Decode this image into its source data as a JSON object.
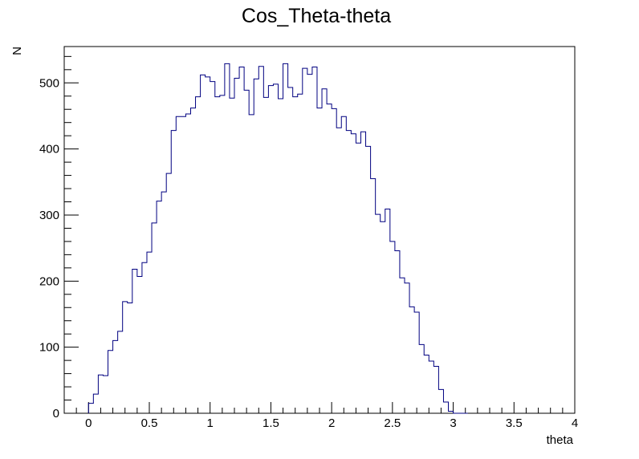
{
  "chart_data": {
    "type": "bar",
    "style": "step-histogram",
    "title": "Cos_Theta-theta",
    "xlabel": "theta",
    "ylabel": "N",
    "xlim": [
      -0.2,
      4
    ],
    "ylim": [
      0,
      555
    ],
    "x_major_ticks": [
      0,
      0.5,
      1,
      1.5,
      2,
      2.5,
      3,
      3.5,
      4
    ],
    "x_tick_labels": [
      "0",
      "0.5",
      "1",
      "1.5",
      "2",
      "2.5",
      "3",
      "3.5",
      "4"
    ],
    "y_major_ticks": [
      0,
      100,
      200,
      300,
      400,
      500
    ],
    "y_tick_labels": [
      "0",
      "100",
      "200",
      "300",
      "400",
      "500"
    ],
    "bin_width": 0.04,
    "line_color": "#000080",
    "grid": false,
    "legend": false,
    "series": [
      {
        "x_low": [
          0.0,
          0.04,
          0.08,
          0.12,
          0.16,
          0.2,
          0.24,
          0.28,
          0.32,
          0.36,
          0.4,
          0.44,
          0.48,
          0.52,
          0.56,
          0.6,
          0.64,
          0.68,
          0.72,
          0.76,
          0.8,
          0.84,
          0.88,
          0.92,
          0.96,
          1.0,
          1.04,
          1.08,
          1.12,
          1.16,
          1.2,
          1.24,
          1.28,
          1.32,
          1.36,
          1.4,
          1.44,
          1.48,
          1.52,
          1.56,
          1.6,
          1.64,
          1.68,
          1.72,
          1.76,
          1.8,
          1.84,
          1.88,
          1.92,
          1.96,
          2.0,
          2.04,
          2.08,
          2.12,
          2.16,
          2.2,
          2.24,
          2.28,
          2.32,
          2.36,
          2.4,
          2.44,
          2.48,
          2.52,
          2.56,
          2.6,
          2.64,
          2.68,
          2.72,
          2.76,
          2.8,
          2.84,
          2.88,
          2.92,
          2.96,
          3.0,
          3.04,
          3.08
        ],
        "values": [
          15,
          29,
          58,
          57,
          95,
          110,
          124,
          169,
          167,
          218,
          207,
          228,
          244,
          288,
          321,
          335,
          363,
          428,
          449,
          449,
          453,
          462,
          479,
          512,
          509,
          502,
          479,
          481,
          529,
          477,
          507,
          524,
          489,
          452,
          506,
          525,
          478,
          496,
          498,
          476,
          529,
          493,
          479,
          483,
          522,
          513,
          524,
          462,
          491,
          468,
          461,
          432,
          449,
          428,
          423,
          409,
          426,
          404,
          355,
          301,
          290,
          309,
          260,
          246,
          205,
          197,
          161,
          153,
          104,
          88,
          79,
          71,
          36,
          17,
          3,
          0,
          0,
          0
        ]
      }
    ]
  }
}
